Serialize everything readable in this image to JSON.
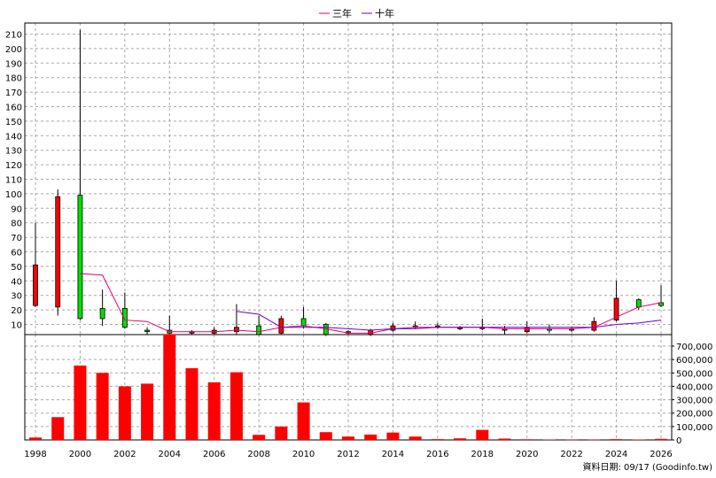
{
  "legend": [
    {
      "name": "三年",
      "color": "#e0006e"
    },
    {
      "name": "十年",
      "color": "#6a00d0"
    }
  ],
  "footer": "資料日期: 09/17  (Goodinfo.tw)",
  "colors": {
    "up": "#ff0000",
    "down": "#00e000",
    "volume": "#ff0000",
    "ma3": "#e0006e",
    "ma10": "#6a00d0"
  },
  "chart_data": [
    {
      "type": "candlestick",
      "title": "",
      "ylim": [
        0,
        215
      ],
      "yticks": [
        10,
        20,
        30,
        40,
        50,
        60,
        70,
        80,
        90,
        100,
        110,
        120,
        130,
        140,
        150,
        160,
        170,
        180,
        190,
        200,
        210
      ],
      "xlim": [
        1998,
        2026
      ],
      "xticks": [
        1998,
        2000,
        2002,
        2004,
        2006,
        2008,
        2010,
        2012,
        2014,
        2016,
        2018,
        2020,
        2022,
        2024,
        2026
      ],
      "grid": true,
      "legend_position": "top-center",
      "candles": [
        {
          "x": 1998,
          "open": 23,
          "close": 51,
          "high": 80,
          "low": 22
        },
        {
          "x": 1999,
          "open": 22,
          "close": 98,
          "high": 103,
          "low": 16
        },
        {
          "x": 2000,
          "open": 99,
          "close": 14,
          "high": 213,
          "low": 13
        },
        {
          "x": 2001,
          "open": 21,
          "close": 14,
          "high": 34,
          "low": 9
        },
        {
          "x": 2002,
          "open": 21,
          "close": 8,
          "high": 32,
          "low": 7
        },
        {
          "x": 2003,
          "open": 6,
          "close": 5,
          "high": 8,
          "low": 3
        },
        {
          "x": 2004,
          "open": 6,
          "close": 4,
          "high": 16,
          "low": 2
        },
        {
          "x": 2005,
          "open": 4,
          "close": 5,
          "high": 6,
          "low": 3
        },
        {
          "x": 2006,
          "open": 4,
          "close": 6,
          "high": 8,
          "low": 3
        },
        {
          "x": 2007,
          "open": 5,
          "close": 8,
          "high": 24,
          "low": 3
        },
        {
          "x": 2008,
          "open": 9,
          "close": 3,
          "high": 16,
          "low": 2
        },
        {
          "x": 2009,
          "open": 4,
          "close": 14,
          "high": 16,
          "low": 3
        },
        {
          "x": 2010,
          "open": 14,
          "close": 9,
          "high": 22,
          "low": 7
        },
        {
          "x": 2011,
          "open": 10,
          "close": 3,
          "high": 11,
          "low": 2
        },
        {
          "x": 2012,
          "open": 4,
          "close": 5,
          "high": 6,
          "low": 3
        },
        {
          "x": 2013,
          "open": 3,
          "close": 6,
          "high": 7,
          "low": 2
        },
        {
          "x": 2014,
          "open": 6,
          "close": 9,
          "high": 11,
          "low": 5
        },
        {
          "x": 2015,
          "open": 8,
          "close": 9,
          "high": 12,
          "low": 7
        },
        {
          "x": 2016,
          "open": 8,
          "close": 9,
          "high": 11,
          "low": 7
        },
        {
          "x": 2017,
          "open": 7,
          "close": 8,
          "high": 9,
          "low": 6
        },
        {
          "x": 2018,
          "open": 8,
          "close": 8,
          "high": 14,
          "low": 6
        },
        {
          "x": 2019,
          "open": 6,
          "close": 7,
          "high": 9,
          "low": 3
        },
        {
          "x": 2020,
          "open": 5,
          "close": 8,
          "high": 12,
          "low": 4
        },
        {
          "x": 2021,
          "open": 7,
          "close": 6,
          "high": 10,
          "low": 4
        },
        {
          "x": 2022,
          "open": 6,
          "close": 7,
          "high": 8,
          "low": 5
        },
        {
          "x": 2023,
          "open": 6,
          "close": 12,
          "high": 15,
          "low": 5
        },
        {
          "x": 2024,
          "open": 13,
          "close": 28,
          "high": 40,
          "low": 12
        },
        {
          "x": 2025,
          "open": 27,
          "close": 22,
          "high": 28,
          "low": 20
        },
        {
          "x": 2026,
          "open": 25,
          "close": 23,
          "high": 37,
          "low": 22
        }
      ],
      "series": [
        {
          "name": "三年",
          "x": [
            2000,
            2001,
            2002,
            2003,
            2004,
            2005,
            2006,
            2007,
            2008,
            2009,
            2010,
            2011,
            2012,
            2013,
            2014,
            2015,
            2016,
            2017,
            2018,
            2019,
            2020,
            2021,
            2022,
            2023,
            2024,
            2025,
            2026
          ],
          "values": [
            45,
            44,
            13,
            12,
            5,
            5,
            5,
            6,
            5,
            8,
            9,
            7,
            4,
            4,
            7,
            8,
            8,
            8,
            8,
            7,
            7,
            7,
            7,
            8,
            15,
            22,
            25
          ]
        },
        {
          "name": "十年",
          "x": [
            2007,
            2008,
            2009,
            2010,
            2011,
            2012,
            2013,
            2014,
            2015,
            2016,
            2017,
            2018,
            2019,
            2020,
            2021,
            2022,
            2023,
            2024,
            2025,
            2026
          ],
          "values": [
            19,
            17,
            8,
            8,
            8,
            7,
            6,
            7,
            7,
            8,
            8,
            8,
            8,
            8,
            8,
            8,
            8,
            10,
            11,
            13
          ]
        }
      ]
    },
    {
      "type": "bar",
      "title": "",
      "ylim": [
        0,
        800000
      ],
      "yticks": [
        0,
        100000,
        200000,
        300000,
        400000,
        500000,
        600000,
        700000
      ],
      "ytick_labels": [
        "0",
        "100,000",
        "200,000",
        "300,000",
        "400,000",
        "500,000",
        "600,000",
        "700,000"
      ],
      "x": [
        1998,
        1999,
        2000,
        2001,
        2002,
        2003,
        2004,
        2005,
        2006,
        2007,
        2008,
        2009,
        2010,
        2011,
        2012,
        2013,
        2014,
        2015,
        2016,
        2017,
        2018,
        2019,
        2020,
        2021,
        2022,
        2023,
        2024,
        2025,
        2026
      ],
      "values": [
        18000,
        170000,
        555000,
        500000,
        400000,
        420000,
        790000,
        535000,
        430000,
        505000,
        38000,
        100000,
        280000,
        58000,
        25000,
        40000,
        55000,
        25000,
        6000,
        12000,
        75000,
        10000,
        5000,
        3000,
        2000,
        2000,
        6000,
        3000,
        8000
      ]
    }
  ]
}
